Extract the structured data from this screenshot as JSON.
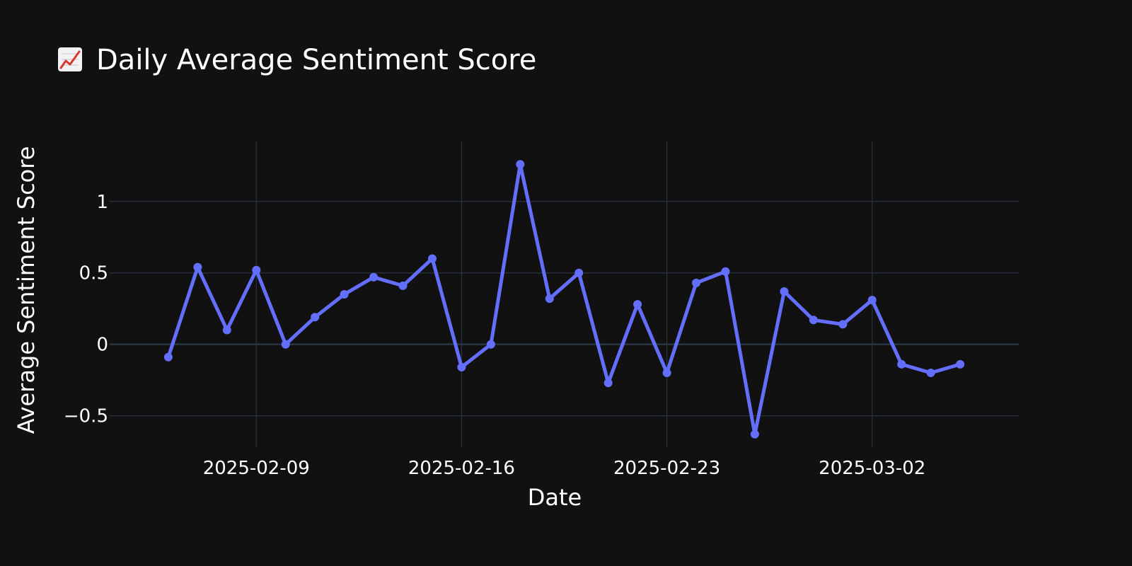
{
  "chart_data": {
    "type": "line",
    "title": "Daily Average Sentiment Score",
    "title_icon": "chart-increasing-icon",
    "xlabel": "Date",
    "ylabel": "Average Sentiment Score",
    "x_ticks": [
      {
        "date": "2025-02-09",
        "label": "2025-02-09"
      },
      {
        "date": "2025-02-16",
        "label": "2025-02-16"
      },
      {
        "date": "2025-02-23",
        "label": "2025-02-23"
      },
      {
        "date": "2025-03-02",
        "label": "2025-03-02"
      }
    ],
    "y_ticks": [
      {
        "value": -0.5,
        "label": "−0.5"
      },
      {
        "value": 0,
        "label": "0"
      },
      {
        "value": 0.5,
        "label": "0.5"
      },
      {
        "value": 1,
        "label": "1"
      }
    ],
    "xlim": [
      "2025-02-04",
      "2025-03-07"
    ],
    "ylim": [
      -0.72,
      1.42
    ],
    "grid": true,
    "line_color": "#636efa",
    "background_color": "#111111",
    "grid_color": "#283442",
    "series": [
      {
        "x": [
          "2025-02-06",
          "2025-02-07",
          "2025-02-08",
          "2025-02-09",
          "2025-02-10",
          "2025-02-11",
          "2025-02-12",
          "2025-02-13",
          "2025-02-14",
          "2025-02-15",
          "2025-02-16",
          "2025-02-17",
          "2025-02-18",
          "2025-02-19",
          "2025-02-20",
          "2025-02-21",
          "2025-02-22",
          "2025-02-23",
          "2025-02-24",
          "2025-02-25",
          "2025-02-26",
          "2025-02-27",
          "2025-02-28",
          "2025-03-01",
          "2025-03-02",
          "2025-03-03",
          "2025-03-04",
          "2025-03-05"
        ],
        "y": [
          -0.09,
          0.54,
          0.1,
          0.52,
          0.0,
          0.19,
          0.35,
          0.47,
          0.41,
          0.6,
          -0.16,
          0.0,
          1.26,
          0.32,
          0.5,
          -0.27,
          0.28,
          -0.2,
          0.43,
          0.51,
          -0.63,
          0.37,
          0.17,
          0.14,
          0.31,
          -0.14,
          -0.2,
          -0.14
        ]
      }
    ]
  }
}
